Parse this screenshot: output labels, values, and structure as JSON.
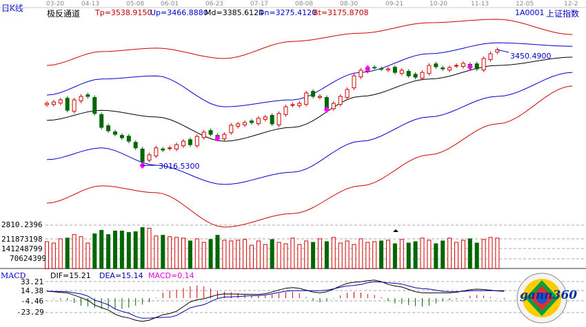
{
  "header": {
    "period_label": "日K线",
    "indicator_name": "极反通道",
    "tp": "Tp=3538.9150",
    "up": "Up=3466.8880",
    "md": "Md=3385.6124",
    "dn": "Dn=3275.4120",
    "bt": "Bt=3175.8708",
    "code": "1A0001",
    "index_name": "上证指数"
  },
  "dates": [
    "03-20",
    "04-13",
    "05-08",
    "06-01",
    "06-23",
    "07-17",
    "08-08",
    "08-30",
    "09-21",
    "10-20",
    "11-13",
    "12-05",
    "12-2"
  ],
  "annotations": {
    "low": "3016.5300",
    "high": "3450.4900"
  },
  "volume_axis": [
    "2810.2396",
    "211873198",
    "141248799",
    "70624399"
  ],
  "macd": {
    "title": "MACD",
    "dif": "DIF=15.21",
    "dea": "DEA=15.14",
    "macd": "MACD=0.14",
    "axis": [
      "33.21",
      "14.38",
      "-4.46",
      "-23.29"
    ]
  },
  "logo": {
    "text": "gann360"
  },
  "colors": {
    "up": "#d00000",
    "down": "#006600",
    "upper_band": "#d00000",
    "mid_band": "#000000",
    "inner_band": "#0000cc",
    "marker": "#ff00ff",
    "dea": "#0000aa"
  },
  "chart_data": [
    {
      "type": "candlestick",
      "closes": [
        3249,
        3254,
        3262,
        3223,
        3262,
        3275,
        3275,
        3211,
        3159,
        3146,
        3133,
        3120,
        3107,
        3082,
        3030,
        3056,
        3082,
        3074,
        3082,
        3094,
        3107,
        3094,
        3125,
        3141,
        3133,
        3120,
        3133,
        3167,
        3172,
        3177,
        3177,
        3193,
        3198,
        3172,
        3211,
        3236,
        3244,
        3249,
        3288,
        3275,
        3275,
        3223,
        3249,
        3275,
        3301,
        3352,
        3373,
        3378,
        3383,
        3378,
        3378,
        3365,
        3373,
        3352,
        3347,
        3365,
        3391,
        3386,
        3378,
        3383,
        3391,
        3399,
        3391,
        3378,
        3417,
        3435,
        3450
      ],
      "bands": {
        "index": [
          0,
          8,
          16,
          26,
          36,
          46,
          56,
          66,
          77
        ],
        "tp": [
          3391,
          3443,
          3456,
          3417,
          3481,
          3512,
          3551,
          3564,
          3507
        ],
        "up": [
          3280,
          3340,
          3352,
          3236,
          3262,
          3365,
          3435,
          3476,
          3463
        ],
        "md": [
          3185,
          3223,
          3198,
          3107,
          3159,
          3275,
          3340,
          3391,
          3422
        ],
        "dn": [
          3038,
          3082,
          3017,
          2945,
          2991,
          3107,
          3198,
          3275,
          3365
        ],
        "bt": [
          2875,
          2940,
          2914,
          2785,
          2836,
          2940,
          3056,
          3172,
          3314
        ]
      }
    },
    {
      "type": "bar",
      "name": "volume",
      "values": [
        190,
        180,
        210,
        215,
        240,
        225,
        180,
        245,
        270,
        240,
        265,
        265,
        255,
        260,
        290,
        285,
        230,
        235,
        225,
        220,
        215,
        195,
        210,
        185,
        205,
        235,
        200,
        195,
        200,
        205,
        165,
        195,
        170,
        205,
        185,
        175,
        215,
        170,
        195,
        185,
        210,
        190,
        220,
        180,
        195,
        170,
        210,
        185,
        190,
        195,
        200,
        175,
        205,
        180,
        190,
        215,
        200,
        175,
        195,
        215,
        185,
        200,
        210,
        180,
        205,
        220,
        215
      ]
    },
    {
      "type": "line",
      "name": "MACD",
      "index": [
        0,
        3,
        5,
        8,
        11,
        14,
        18,
        22,
        26,
        31,
        36,
        40,
        45,
        48,
        51,
        55,
        59,
        63,
        67
      ],
      "dif": [
        13,
        10,
        1,
        -18,
        -35,
        -44,
        -29,
        -3,
        8,
        7,
        20,
        10,
        30,
        34,
        23,
        10,
        10,
        17,
        13
      ],
      "dea": [
        13,
        12,
        8,
        -8,
        -25,
        -38,
        -36,
        -15,
        2,
        5,
        14,
        14,
        24,
        31,
        28,
        18,
        12,
        14,
        14
      ]
    }
  ]
}
